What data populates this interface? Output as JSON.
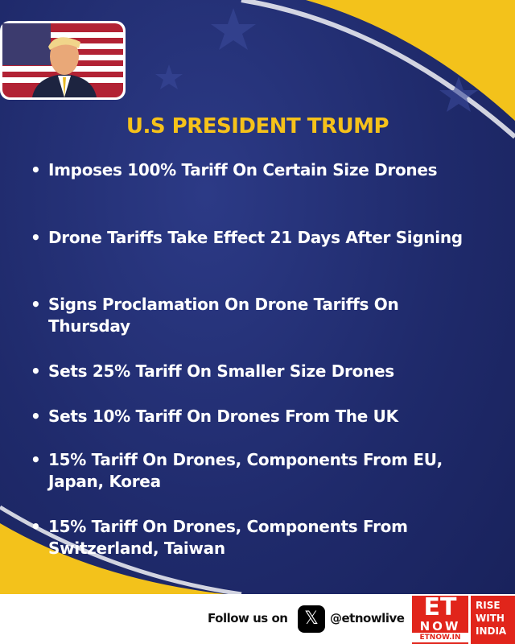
{
  "header": {
    "title": "U.S PRESIDENT TRUMP"
  },
  "bullets": [
    "Imposes 100% Tariff On Certain Size Drones",
    "Drone Tariffs Take Effect 21 Days After Signing",
    "Signs Proclamation On Drone Tariffs On Thursday",
    "Sets 25% Tariff On Smaller Size Drones",
    "Sets 10% Tariff On Drones From The UK",
    "15% Tariff On Drones, Components From EU, Japan, Korea",
    "15% Tariff On Drones, Components From Switzerland, Taiwan"
  ],
  "footer": {
    "follow": "Follow us on",
    "handle": "@etnowlive",
    "logo": {
      "et": "ET",
      "now": "NOW",
      "site": "ETNOW.IN"
    },
    "tagline": [
      "RISE",
      "WITH",
      "INDIA"
    ]
  }
}
